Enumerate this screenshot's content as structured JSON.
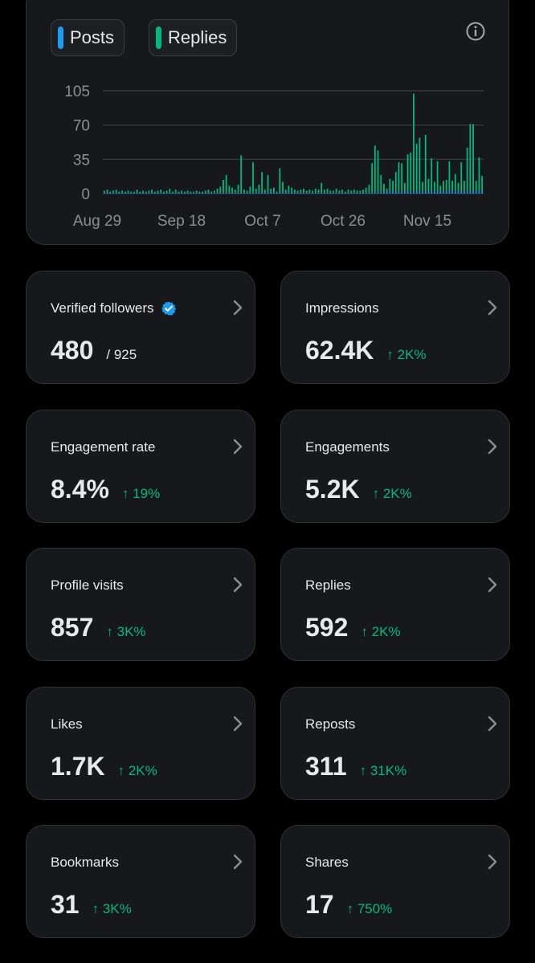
{
  "legend": {
    "posts_label": "Posts",
    "replies_label": "Replies",
    "posts_color": "#1d9bf0",
    "replies_color": "#00ba7c"
  },
  "chart_data": {
    "type": "bar",
    "x_tick_labels": [
      "Aug 29",
      "Sep 18",
      "Oct 7",
      "Oct 26",
      "Nov 15"
    ],
    "y_ticks": [
      0,
      35,
      70,
      105
    ],
    "ylim": [
      0,
      105
    ],
    "grid": true,
    "series": [
      {
        "name": "Posts",
        "color": "#1d9bf0",
        "values": [
          1,
          1,
          1,
          1,
          1,
          1,
          1,
          1,
          1,
          1,
          1,
          1,
          1,
          1,
          1,
          1,
          1,
          1,
          1,
          1,
          1,
          1,
          1,
          1,
          1,
          1,
          1,
          1,
          1,
          1,
          1,
          1,
          1,
          1,
          1,
          1,
          1,
          1,
          1,
          1,
          1,
          1,
          1,
          1,
          1,
          1,
          1,
          1,
          1,
          1,
          1,
          1,
          1,
          2,
          1,
          1,
          2,
          1,
          1,
          1,
          2,
          1,
          1,
          2,
          1,
          1,
          1,
          1,
          1,
          1,
          1,
          1,
          1,
          1,
          1,
          1,
          1,
          1,
          1,
          1,
          1,
          1,
          1,
          1,
          1,
          1,
          1,
          1,
          1,
          1,
          1,
          2,
          2,
          1,
          2,
          2,
          2,
          3,
          2,
          2,
          2,
          2,
          3,
          2,
          2,
          3,
          2,
          2,
          3,
          2,
          3,
          2,
          3,
          2,
          3,
          2,
          3,
          3,
          2,
          3,
          2,
          3,
          2,
          3,
          2,
          3,
          2,
          3,
          2
        ]
      },
      {
        "name": "Replies",
        "color": "#00ba7c",
        "values": [
          2,
          3,
          1,
          2,
          3,
          1,
          2,
          1,
          2,
          1,
          1,
          3,
          1,
          2,
          1,
          2,
          3,
          1,
          2,
          3,
          1,
          2,
          4,
          1,
          3,
          1,
          2,
          1,
          2,
          1,
          1,
          2,
          1,
          1,
          2,
          3,
          1,
          2,
          4,
          6,
          13,
          18,
          7,
          5,
          3,
          8,
          38,
          3,
          2,
          6,
          31,
          4,
          8,
          20,
          3,
          18,
          3,
          5,
          1,
          25,
          10,
          3,
          7,
          4,
          3,
          2,
          3,
          4,
          2,
          3,
          2,
          4,
          3,
          10,
          3,
          4,
          2,
          2,
          4,
          2,
          3,
          1,
          3,
          2,
          3,
          2,
          2,
          3,
          5,
          8,
          30,
          47,
          42,
          18,
          8,
          3,
          13,
          10,
          20,
          30,
          29,
          9,
          37,
          40,
          100,
          48,
          55,
          10,
          57,
          13,
          33,
          10,
          30,
          6,
          10,
          12,
          30,
          10,
          18,
          8,
          30,
          10,
          45,
          68,
          69,
          10,
          35,
          15
        ]
      }
    ]
  },
  "cards": [
    {
      "label": "Verified followers",
      "value": "480",
      "sub": "/ 925",
      "change": "",
      "verified": true
    },
    {
      "label": "Impressions",
      "value": "62.4K",
      "sub": "",
      "change": "↑ 2K%",
      "verified": false
    },
    {
      "label": "Engagement rate",
      "value": "8.4%",
      "sub": "",
      "change": "↑ 19%",
      "verified": false
    },
    {
      "label": "Engagements",
      "value": "5.2K",
      "sub": "",
      "change": "↑ 2K%",
      "verified": false
    },
    {
      "label": "Profile visits",
      "value": "857",
      "sub": "",
      "change": "↑ 3K%",
      "verified": false
    },
    {
      "label": "Replies",
      "value": "592",
      "sub": "",
      "change": "↑ 2K%",
      "verified": false
    },
    {
      "label": "Likes",
      "value": "1.7K",
      "sub": "",
      "change": "↑ 2K%",
      "verified": false
    },
    {
      "label": "Reposts",
      "value": "311",
      "sub": "",
      "change": "↑ 31K%",
      "verified": false
    },
    {
      "label": "Bookmarks",
      "value": "31",
      "sub": "",
      "change": "↑ 3K%",
      "verified": false
    },
    {
      "label": "Shares",
      "value": "17",
      "sub": "",
      "change": "↑ 750%",
      "verified": false
    }
  ]
}
